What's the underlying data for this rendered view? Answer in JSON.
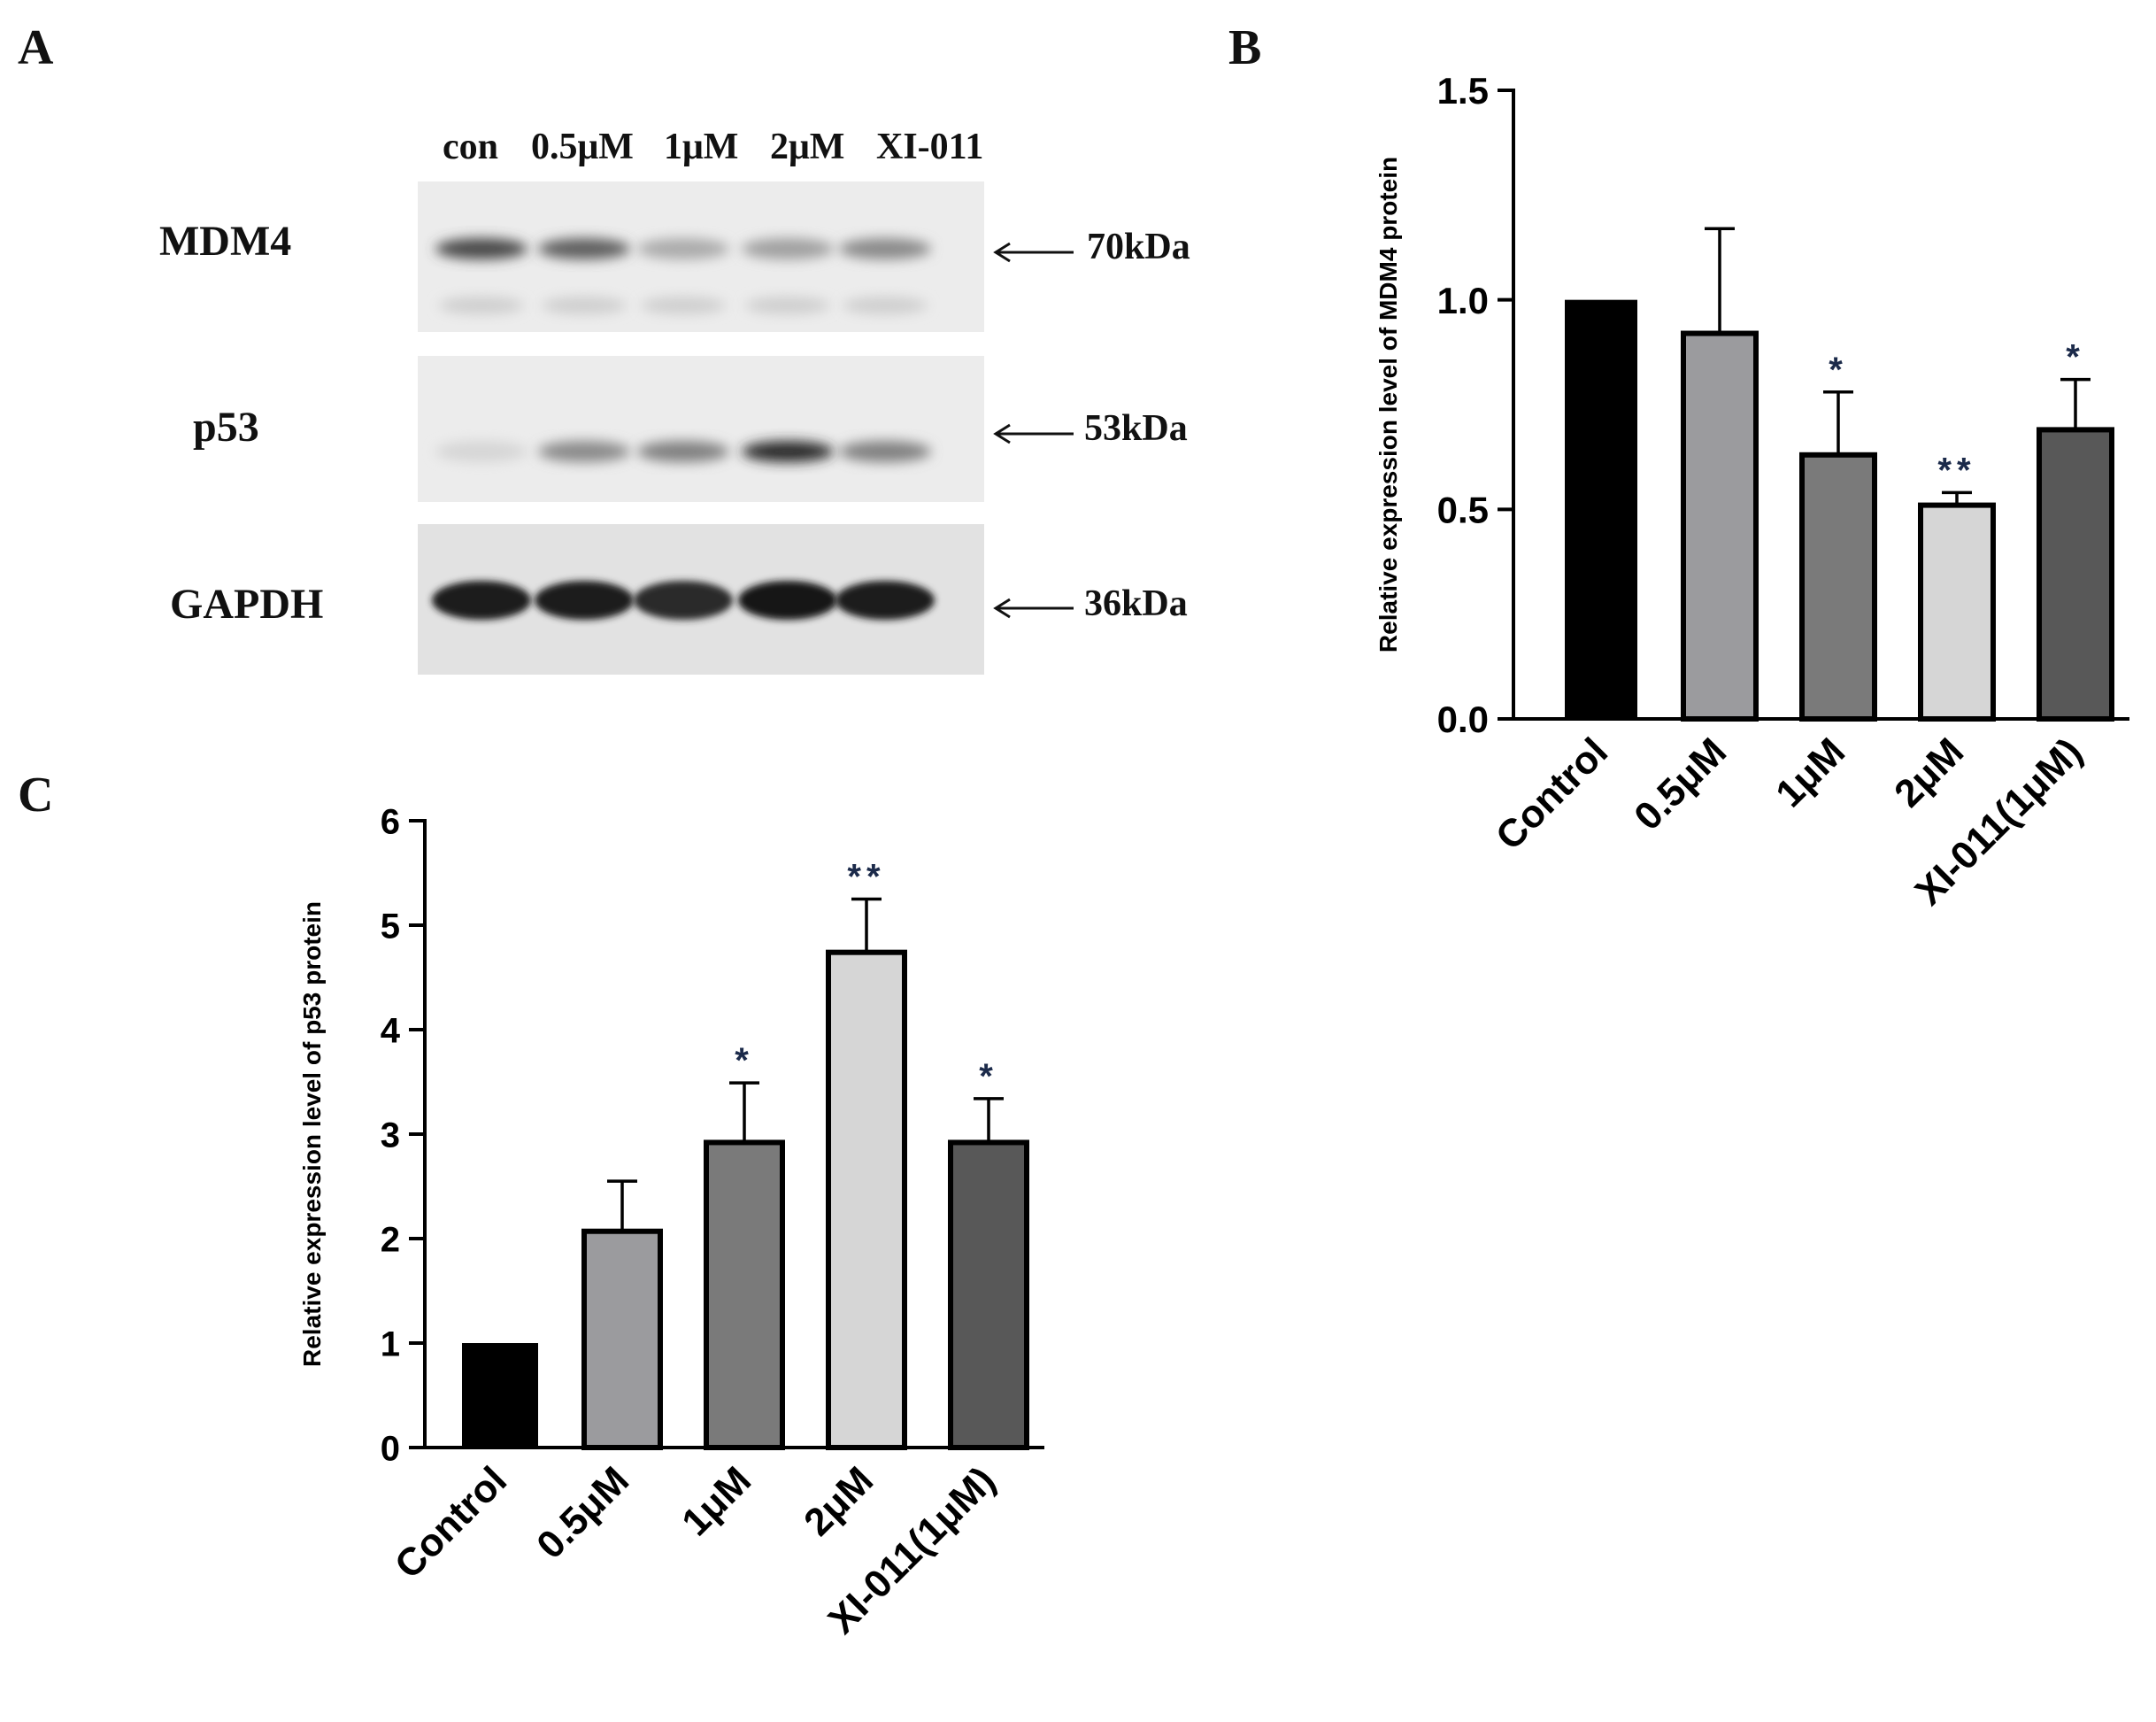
{
  "panels": {
    "a": "A",
    "b": "B",
    "c": "C"
  },
  "western_blot": {
    "lanes": [
      "con",
      "0.5μM",
      "1μM",
      "2μM",
      "XI-011"
    ],
    "rows": [
      {
        "protein": "MDM4",
        "size": "70kDa",
        "intensity": [
          0.75,
          0.65,
          0.3,
          0.35,
          0.45
        ]
      },
      {
        "protein": "p53",
        "size": "53kDa",
        "intensity": [
          0.1,
          0.45,
          0.5,
          0.9,
          0.5
        ]
      },
      {
        "protein": "GAPDH",
        "size": "36kDa",
        "intensity": [
          0.95,
          0.95,
          0.9,
          1.0,
          0.95
        ]
      }
    ]
  },
  "chart_data": [
    {
      "panel": "B",
      "type": "bar",
      "ylabel": "Relative expression level of MDM4 protein",
      "categories": [
        "Control",
        "0.5μM",
        "1μM",
        "2μM",
        "XI-011(1μM)"
      ],
      "values": [
        1.0,
        0.92,
        0.63,
        0.51,
        0.69
      ],
      "error": [
        0.0,
        0.25,
        0.15,
        0.03,
        0.12
      ],
      "significance": [
        "",
        "",
        "*",
        "**",
        "*"
      ],
      "ylim": [
        0,
        1.5
      ],
      "yticks": [
        "0.0",
        "0.5",
        "1.0",
        "1.5"
      ],
      "tick_values": [
        0,
        0.5,
        1.0,
        1.5
      ],
      "colors": [
        "#000000",
        "#9b9b9e",
        "#7a7a7a",
        "#d6d6d6",
        "#585858"
      ]
    },
    {
      "panel": "C",
      "type": "bar",
      "ylabel": "Relative expression level of p53 protein",
      "categories": [
        "Control",
        "0.5μM",
        "1μM",
        "2μM",
        "XI-011(1μM)"
      ],
      "values": [
        1.0,
        2.07,
        2.92,
        4.74,
        2.92
      ],
      "error": [
        0.0,
        0.48,
        0.57,
        0.51,
        0.42
      ],
      "significance": [
        "",
        "",
        "*",
        "**",
        "*"
      ],
      "ylim": [
        0,
        6
      ],
      "yticks": [
        "0",
        "1",
        "2",
        "3",
        "4",
        "5",
        "6"
      ],
      "tick_values": [
        0,
        1,
        2,
        3,
        4,
        5,
        6
      ],
      "colors": [
        "#000000",
        "#9b9b9e",
        "#7a7a7a",
        "#d6d6d6",
        "#585858"
      ]
    }
  ]
}
